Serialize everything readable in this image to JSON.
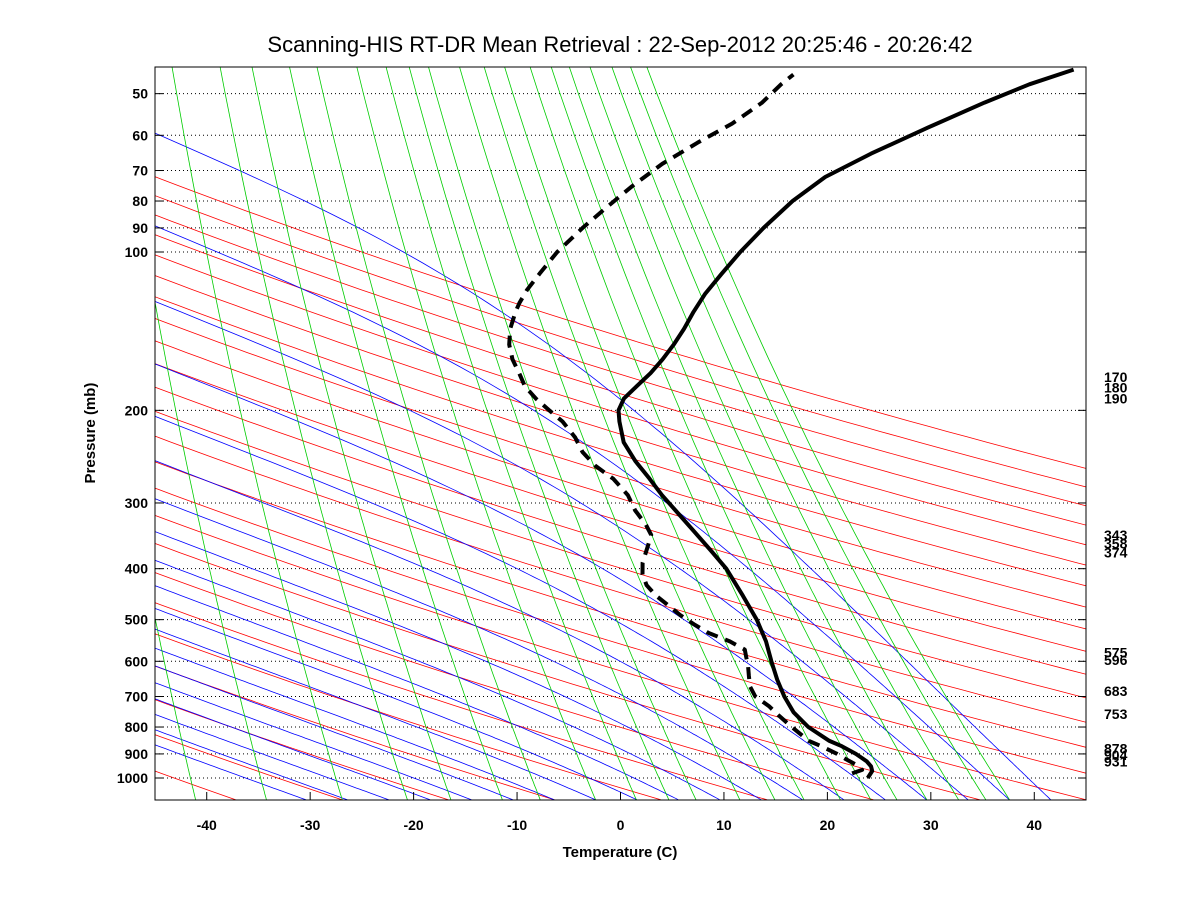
{
  "chart_data": {
    "type": "line",
    "subtype": "skew-t log-p sounding",
    "title": "Scanning-HIS RT-DR Mean Retrieval : 22-Sep-2012 20:25:46 - 20:26:42",
    "xlabel": "Temperature (C)",
    "ylabel": "Pressure (mb)",
    "xlim": [
      -45,
      45
    ],
    "ylim": [
      1080,
      45
    ],
    "x_ticks": [
      -40,
      -30,
      -20,
      -10,
      0,
      10,
      20,
      30,
      40
    ],
    "y_ticks": [
      50,
      60,
      70,
      80,
      90,
      100,
      200,
      300,
      400,
      500,
      600,
      700,
      800,
      900,
      1000
    ],
    "grid": "dotted horizontal at pressure ticks",
    "background_lines": {
      "dry_adiabats_color": "#ff0000",
      "moist_adiabats_color": "#0000ff",
      "mixing_ratio_color": "#00cc00"
    },
    "series": [
      {
        "name": "Temperature",
        "style": "solid",
        "color": "#000000",
        "points": [
          [
            1000,
            23.9
          ],
          [
            970,
            24.2
          ],
          [
            950,
            24.0
          ],
          [
            930,
            23.5
          ],
          [
            900,
            22.3
          ],
          [
            870,
            20.8
          ],
          [
            850,
            19.5
          ],
          [
            800,
            17.2
          ],
          [
            750,
            15.5
          ],
          [
            700,
            14.3
          ],
          [
            650,
            13.3
          ],
          [
            600,
            12.4
          ],
          [
            550,
            11.5
          ],
          [
            500,
            10.2
          ],
          [
            450,
            8.4
          ],
          [
            400,
            6.3
          ],
          [
            370,
            4.5
          ],
          [
            340,
            2.5
          ],
          [
            310,
            0.3
          ],
          [
            290,
            -1.3
          ],
          [
            270,
            -2.8
          ],
          [
            250,
            -4.5
          ],
          [
            230,
            -6.0
          ],
          [
            210,
            -6.8
          ],
          [
            200,
            -7.1
          ],
          [
            190,
            -6.8
          ],
          [
            180,
            -5.8
          ],
          [
            170,
            -4.7
          ],
          [
            160,
            -3.8
          ],
          [
            150,
            -3.0
          ],
          [
            140,
            -2.3
          ],
          [
            130,
            -1.7
          ],
          [
            120,
            -0.9
          ],
          [
            110,
            0.3
          ],
          [
            100,
            1.7
          ],
          [
            90,
            3.5
          ],
          [
            80,
            5.8
          ],
          [
            72,
            8.5
          ],
          [
            65,
            12.5
          ],
          [
            58,
            17.5
          ],
          [
            52,
            22.5
          ],
          [
            48,
            26.5
          ],
          [
            45,
            30.5
          ]
        ]
      },
      {
        "name": "Dewpoint",
        "style": "dashed",
        "color": "#000000",
        "points": [
          [
            980,
            22.3
          ],
          [
            965,
            23.2
          ],
          [
            945,
            22.6
          ],
          [
            920,
            21.4
          ],
          [
            900,
            20.5
          ],
          [
            870,
            18.8
          ],
          [
            850,
            17.5
          ],
          [
            800,
            15.6
          ],
          [
            760,
            14.1
          ],
          [
            730,
            13.0
          ],
          [
            700,
            11.5
          ],
          [
            670,
            10.8
          ],
          [
            640,
            10.5
          ],
          [
            610,
            10.2
          ],
          [
            590,
            9.9
          ],
          [
            570,
            9.6
          ],
          [
            550,
            8.0
          ],
          [
            530,
            5.8
          ],
          [
            510,
            4.2
          ],
          [
            490,
            2.7
          ],
          [
            470,
            1.4
          ],
          [
            450,
            0.0
          ],
          [
            430,
            -1.1
          ],
          [
            410,
            -1.7
          ],
          [
            390,
            -1.9
          ],
          [
            375,
            -1.8
          ],
          [
            360,
            -1.7
          ],
          [
            345,
            -1.6
          ],
          [
            330,
            -2.3
          ],
          [
            310,
            -3.6
          ],
          [
            290,
            -4.6
          ],
          [
            270,
            -6.3
          ],
          [
            255,
            -8.3
          ],
          [
            240,
            -9.8
          ],
          [
            225,
            -10.8
          ],
          [
            210,
            -12.3
          ],
          [
            200,
            -13.8
          ],
          [
            190,
            -15.3
          ],
          [
            180,
            -16.6
          ],
          [
            170,
            -17.4
          ],
          [
            160,
            -18.3
          ],
          [
            150,
            -18.9
          ],
          [
            140,
            -19.1
          ],
          [
            130,
            -18.9
          ],
          [
            125,
            -18.7
          ],
          [
            118,
            -18.2
          ],
          [
            110,
            -17.3
          ],
          [
            100,
            -16.0
          ],
          [
            90,
            -14.0
          ],
          [
            82,
            -12.0
          ],
          [
            75,
            -10.0
          ],
          [
            68,
            -7.5
          ],
          [
            62,
            -4.5
          ],
          [
            57,
            -1.5
          ],
          [
            52,
            1.0
          ],
          [
            48,
            2.5
          ],
          [
            46,
            3.5
          ]
        ]
      }
    ],
    "right_side_labels": [
      {
        "label": "170",
        "p": 173
      },
      {
        "label": "180",
        "p": 181
      },
      {
        "label": "190",
        "p": 190
      },
      {
        "label": "343",
        "p": 345
      },
      {
        "label": "358",
        "p": 358
      },
      {
        "label": "374",
        "p": 373
      },
      {
        "label": "575",
        "p": 577
      },
      {
        "label": "596",
        "p": 596
      },
      {
        "label": "683",
        "p": 683
      },
      {
        "label": "753",
        "p": 756
      },
      {
        "label": "878",
        "p": 878
      },
      {
        "label": "904",
        "p": 904
      },
      {
        "label": "931",
        "p": 931
      }
    ]
  }
}
